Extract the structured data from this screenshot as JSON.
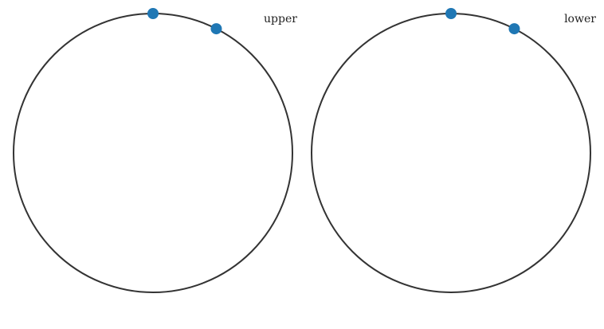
{
  "panels": [
    {
      "label": "upper",
      "points": [
        {
          "angle_deg": 90
        },
        {
          "angle_deg": 63
        }
      ]
    },
    {
      "label": "lower",
      "points": [
        {
          "angle_deg": 90
        },
        {
          "angle_deg": 63
        }
      ]
    }
  ],
  "colors": {
    "circle": "#333333",
    "point": "#1f77b4"
  }
}
